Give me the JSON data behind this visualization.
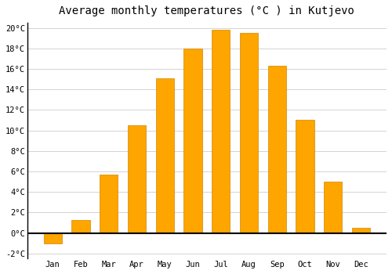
{
  "title": "Average monthly temperatures (°C ) in Kutjevo",
  "months": [
    "Jan",
    "Feb",
    "Mar",
    "Apr",
    "May",
    "Jun",
    "Jul",
    "Aug",
    "Sep",
    "Oct",
    "Nov",
    "Dec"
  ],
  "values": [
    -1.0,
    1.3,
    5.7,
    10.5,
    15.1,
    18.0,
    19.8,
    19.5,
    16.3,
    11.0,
    5.0,
    0.5
  ],
  "bar_color": "#FFA500",
  "bar_edge_color": "#CC8800",
  "background_color": "#FFFFFF",
  "plot_bg_color": "#FFFFFF",
  "grid_color": "#CCCCCC",
  "ylim": [
    -2.5,
    20.5
  ],
  "yticks": [
    -2,
    0,
    2,
    4,
    6,
    8,
    10,
    12,
    14,
    16,
    18,
    20
  ],
  "title_fontsize": 10,
  "tick_fontsize": 7.5,
  "bar_width": 0.65
}
